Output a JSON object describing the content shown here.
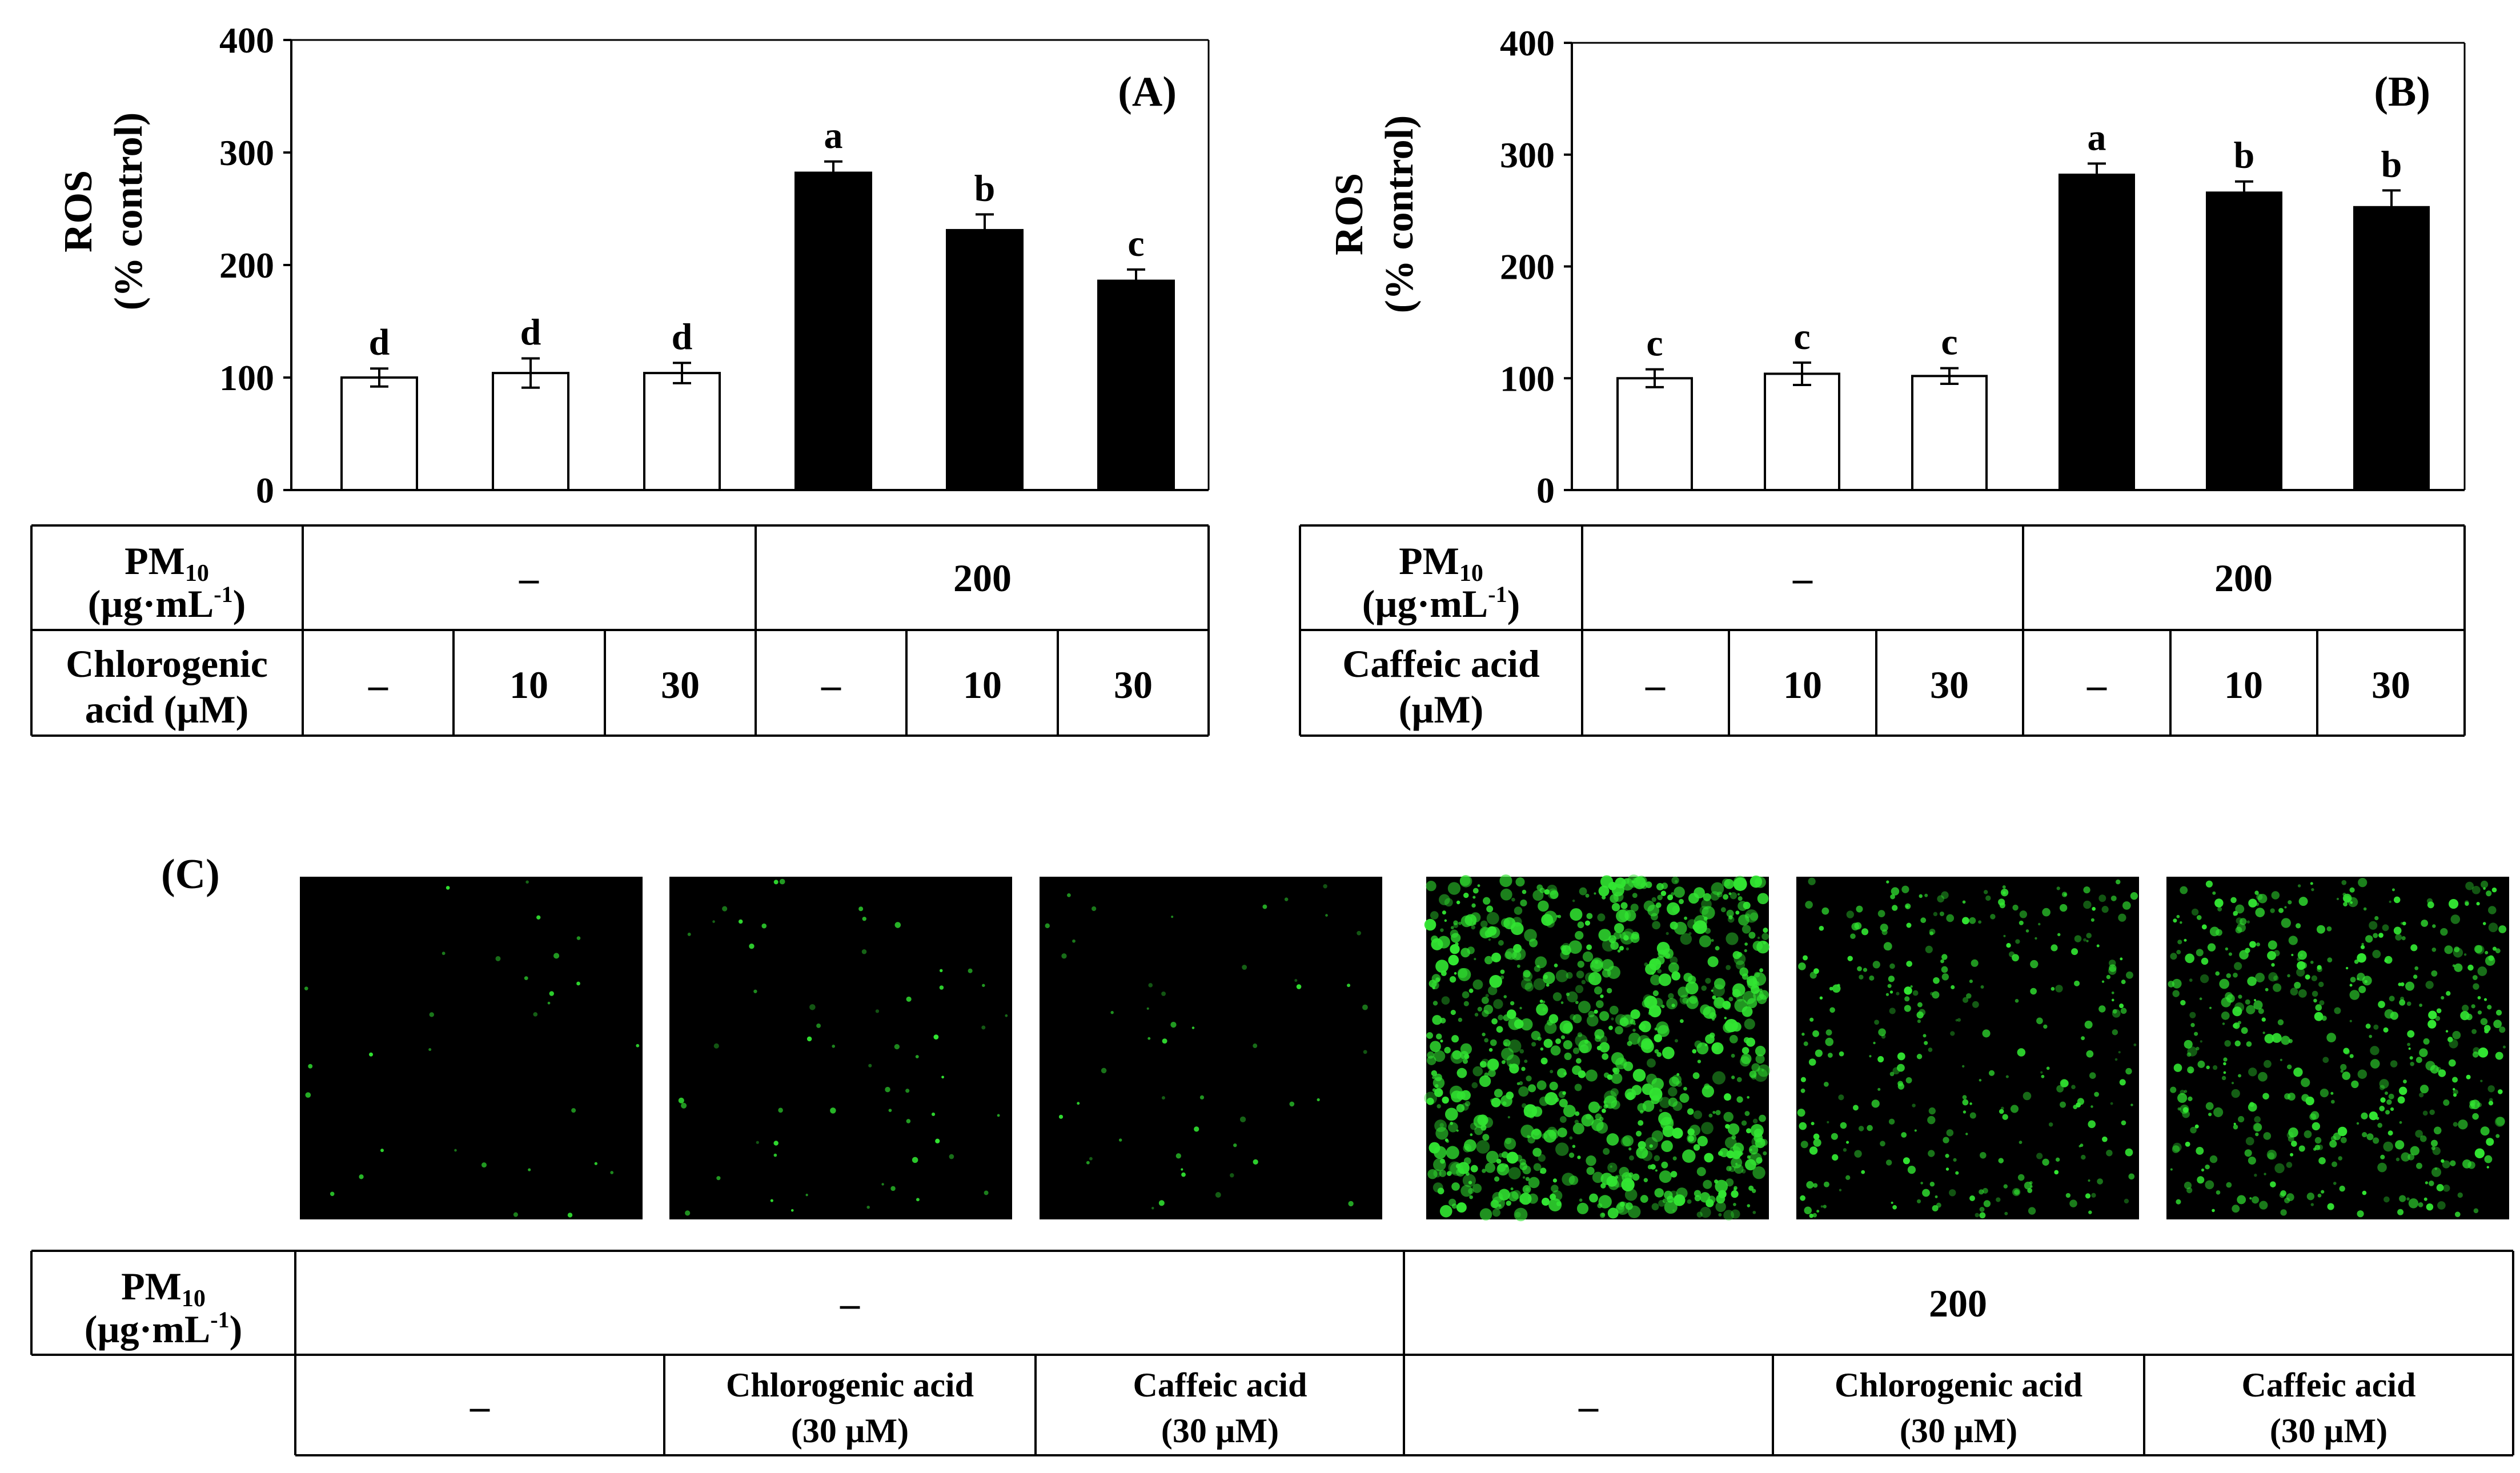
{
  "chart_data": [
    {
      "type": "bar",
      "panel_label": "(A)",
      "ylabel_line1": "ROS",
      "ylabel_line2": "(% control)",
      "ylim": [
        0,
        400
      ],
      "yticks": [
        "0",
        "100",
        "200",
        "300",
        "400"
      ],
      "grid": false,
      "values": [
        100,
        104,
        104,
        282,
        231,
        186
      ],
      "errors": [
        8,
        13,
        9,
        10,
        14,
        10
      ],
      "significance": [
        "d",
        "d",
        "d",
        "a",
        "b",
        "c"
      ],
      "bar_colors": [
        "#ffffff",
        "#ffffff",
        "#ffffff",
        "#000000",
        "#000000",
        "#000000"
      ],
      "table": {
        "row1_label_main": "PM",
        "row1_label_sub": "10",
        "row1_label_line2": "(µg·mL",
        "row1_label_sup": "-1",
        "row1_label_close": ")",
        "row1_groups": [
          "–",
          "200"
        ],
        "row2_label_line1": "Chlorogenic",
        "row2_label_line2": "acid (µM)",
        "row2_cells": [
          "–",
          "10",
          "30",
          "–",
          "10",
          "30"
        ]
      }
    },
    {
      "type": "bar",
      "panel_label": "(B)",
      "ylabel_line1": "ROS",
      "ylabel_line2": "(% control)",
      "ylim": [
        0,
        400
      ],
      "yticks": [
        "0",
        "100",
        "200",
        "300",
        "400"
      ],
      "grid": false,
      "values": [
        100,
        104,
        102,
        282,
        266,
        253
      ],
      "errors": [
        8,
        10,
        7,
        10,
        10,
        15
      ],
      "significance": [
        "c",
        "c",
        "c",
        "a",
        "b",
        "b"
      ],
      "bar_colors": [
        "#ffffff",
        "#ffffff",
        "#ffffff",
        "#000000",
        "#000000",
        "#000000"
      ],
      "table": {
        "row1_label_main": "PM",
        "row1_label_sub": "10",
        "row1_label_line2": "(µg·mL",
        "row1_label_sup": "-1",
        "row1_label_close": ")",
        "row1_groups": [
          "–",
          "200"
        ],
        "row2_label_line1": "Caffeic acid",
        "row2_label_line2": "(µM)",
        "row2_cells": [
          "–",
          "10",
          "30",
          "–",
          "10",
          "30"
        ]
      }
    }
  ],
  "panel_c": {
    "label": "(C)",
    "image_colors": {
      "background": "#000000",
      "fluorescence": "#32e632"
    },
    "images": [
      {
        "fluorescence_level": 0.02
      },
      {
        "fluorescence_level": 0.05
      },
      {
        "fluorescence_level": 0.04
      },
      {
        "fluorescence_level": 1.0
      },
      {
        "fluorescence_level": 0.35
      },
      {
        "fluorescence_level": 0.55
      }
    ],
    "table": {
      "row1_label_main": "PM",
      "row1_label_sub": "10",
      "row1_label_line2": "(µg·mL",
      "row1_label_sup": "-1",
      "row1_label_close": ")",
      "row1_groups": [
        "–",
        "200"
      ],
      "row2_cells": [
        {
          "line1": "–",
          "line2": ""
        },
        {
          "line1": "Chlorogenic acid",
          "line2": "(30 µM)"
        },
        {
          "line1": "Caffeic acid",
          "line2": "(30 µM)"
        },
        {
          "line1": "–",
          "line2": ""
        },
        {
          "line1": "Chlorogenic acid",
          "line2": "(30 µM)"
        },
        {
          "line1": "Caffeic acid",
          "line2": "(30 µM)"
        }
      ]
    }
  }
}
